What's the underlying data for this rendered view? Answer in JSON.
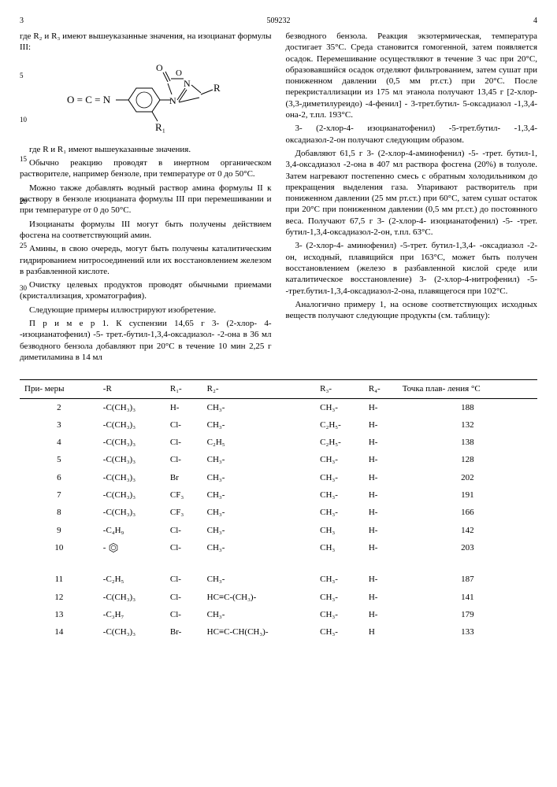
{
  "patent_number": "509232",
  "col_left_num": "3",
  "col_right_num": "4",
  "left": {
    "p1": "где R₂ и R₃ имеют вышеуказанные значения, на изоцианат формулы III:",
    "p2": "где R и R₁ имеют вышеуказанные значения.",
    "p3": "Обычно реакцию проводят в инертном органическом растворителе, например бензоле, при температуре от 0 до 50°С.",
    "p4": "Можно также добавлять водный раствор амина формулы II к раствору в бензоле изоцианата формулы III при перемешивании и при температуре от 0 до 50°С.",
    "p5": "Изоцианаты формулы III могут быть получены действием фосгена на соответствующий амин.",
    "p6": "Амины, в свою очередь, могут быть получены каталитическим гидрированием нитросоединений или их восстановлением железом в разбавленной кислоте.",
    "p7": "Очистку целевых продуктов проводят обычными приемами (кристаллизация, хроматография).",
    "p8": "Следующие примеры иллюстрируют изобретение.",
    "p9": "П р и м е р 1. К суспензии 14,65 г 3- (2-хлор- 4- -изоцианатофенил) -5- трет.-бутил-1,3,4-оксадиазол- -2-она в 36 мл безводного бензола добавляют при 20°С в течение 10 мин 2,25 г диметиламина в 14 мл"
  },
  "right": {
    "p1": "безводного бензола. Реакция экзотермическая, температура достигает 35°С. Среда становится гомогенной, затем появляется осадок. Перемешивание осуществляют в течение 3 час при 20°С, образовавшийся осадок отделяют фильтрованием, затем сушат при пониженном давлении (0,5 мм рт.ст.) при 20°С. После перекристаллизации из 175 мл этанола получают 13,45 г [2-хлор- (3,3-диметилуреидо) -4-фенил] - 3-трет.бутил- 5-оксадиазол -1,3,4-она-2, т.пл. 193°С.",
    "p2": "3- (2-хлор-4- изоцианатофенил) -5-трет.бутил- -1,3,4- оксадиазол-2-он получают следующим образом.",
    "p3": "Добавляют 61,5 г 3- (2-хлор-4-аминофенил) -5- -трет. бутил-1, 3,4-оксадиазол -2-она в 407 мл раствора фосгена (20%) в толуоле. Затем нагревают постепенно смесь с обратным холодильником до прекращения выделения газа. Упаривают растворитель при пониженном давлении (25 мм рт.ст.) при 60°С, затем сушат остаток при 20°С при пониженном давлении (0,5 мм рт.ст.) до постоянного веса. Получают 67,5 г 3- (2-хлор-4- изоцианатофенил) -5- -трет. бутил-1,3,4-оксадиазол-2-он, т.пл. 63°С.",
    "p4": "3- (2-хлор-4- аминофенил) -5-трет. бутил-1,3,4- -оксадиазол -2-он, исходный, плавящийся при 163°С, может быть получен восстановлением (железо в разбавленной кислой среде или каталитическое восстановление) 3- (2-хлор-4-нитрофенил) -5- -трет.бутил-1,3,4-оксадиазол-2-она, плавящегося при 102°С.",
    "p5": "Аналогично примеру 1, на основе соответствующих исходных веществ получают следующие продукты (см. таблицу):"
  },
  "table": {
    "headers": [
      "При-\nмеры",
      "-R",
      "R₁-",
      "R₂-",
      "R₃-",
      "R₄-",
      "Точка плав-\nления °С"
    ],
    "rows": [
      [
        "2",
        "-C(CH₃)₃",
        "H-",
        "CH₃-",
        "CH₃-",
        "H-",
        "188"
      ],
      [
        "3",
        "-C(CH₃)₃",
        "Cl-",
        "CH₃-",
        "C₂H₅-",
        "H-",
        "132"
      ],
      [
        "4",
        "-C(CH₃)₃",
        "Cl-",
        "C₂H₅",
        "C₂H₅-",
        "H-",
        "138"
      ],
      [
        "5",
        "-C(CH₃)₃",
        "Cl-",
        "CH₃-",
        "CH₃-",
        "H-",
        "128"
      ],
      [
        "6",
        "-C(CH₃)₃",
        "Br",
        "CH₃-",
        "CH₃-",
        "H-",
        "202"
      ],
      [
        "7",
        "-C(CH₃)₃",
        "CF₃",
        "CH₃-",
        "CH₃-",
        "H-",
        "191"
      ],
      [
        "8",
        "-C(CH₃)₃",
        "CF₃",
        "CH₃-",
        "CH₃-",
        "H-",
        "166"
      ],
      [
        "9",
        "-C₄H₉",
        "Cl-",
        "CH₃-",
        "CH₃",
        "H-",
        "142"
      ],
      [
        "10",
        "PHENYL",
        "Cl-",
        "CH₃-",
        "CH₃",
        "H-",
        "203"
      ],
      [
        "11",
        "-C₂H₅",
        "Cl-",
        "CH₃-",
        "CH₃-",
        "H-",
        "187"
      ],
      [
        "12",
        "-C(CH₃)₃",
        "Cl-",
        "HC≡C-(CH₃)-",
        "CH₃-",
        "H-",
        "141"
      ],
      [
        "13",
        "-C₃H₇",
        "Cl-",
        "CH₃-",
        "CH₃-",
        "H-",
        "179"
      ],
      [
        "14",
        "-C(CH₃)₃",
        "Br-",
        "HC≡C-CH(CH₃)-",
        "CH₃-",
        "H",
        "133"
      ]
    ]
  }
}
